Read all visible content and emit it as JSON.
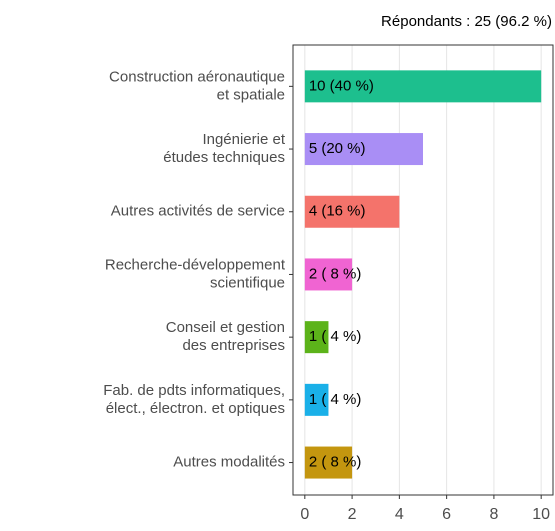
{
  "chart_data": {
    "type": "barh",
    "subtitle": "Répondants : 25 (96.2 %)",
    "categories": [
      "Construction aéronautique\net spatiale",
      "Ingénierie et\nétudes techniques",
      "Autres activités de service",
      "Recherche-développement\nscientifique",
      "Conseil et gestion\ndes entreprises",
      "Fab. de pdts informatiques,\nélect., électron. et optiques",
      "Autres modalités"
    ],
    "values": [
      10,
      5,
      4,
      2,
      1,
      1,
      2
    ],
    "value_labels": [
      "10 (40 %)",
      "5 (20 %)",
      "4 (16 %)",
      "2 ( 8 %)",
      "1 ( 4 %)",
      "1 ( 4 %)",
      "2 ( 8 %)"
    ],
    "colors": [
      "#1dbf8e",
      "#a98ef5",
      "#f4736b",
      "#f064d2",
      "#5cb31a",
      "#1ab0e8",
      "#c4960f"
    ],
    "xlim": [
      -0.5,
      10.5
    ],
    "xticks": [
      0,
      2,
      4,
      6,
      8,
      10
    ],
    "grid": true
  }
}
